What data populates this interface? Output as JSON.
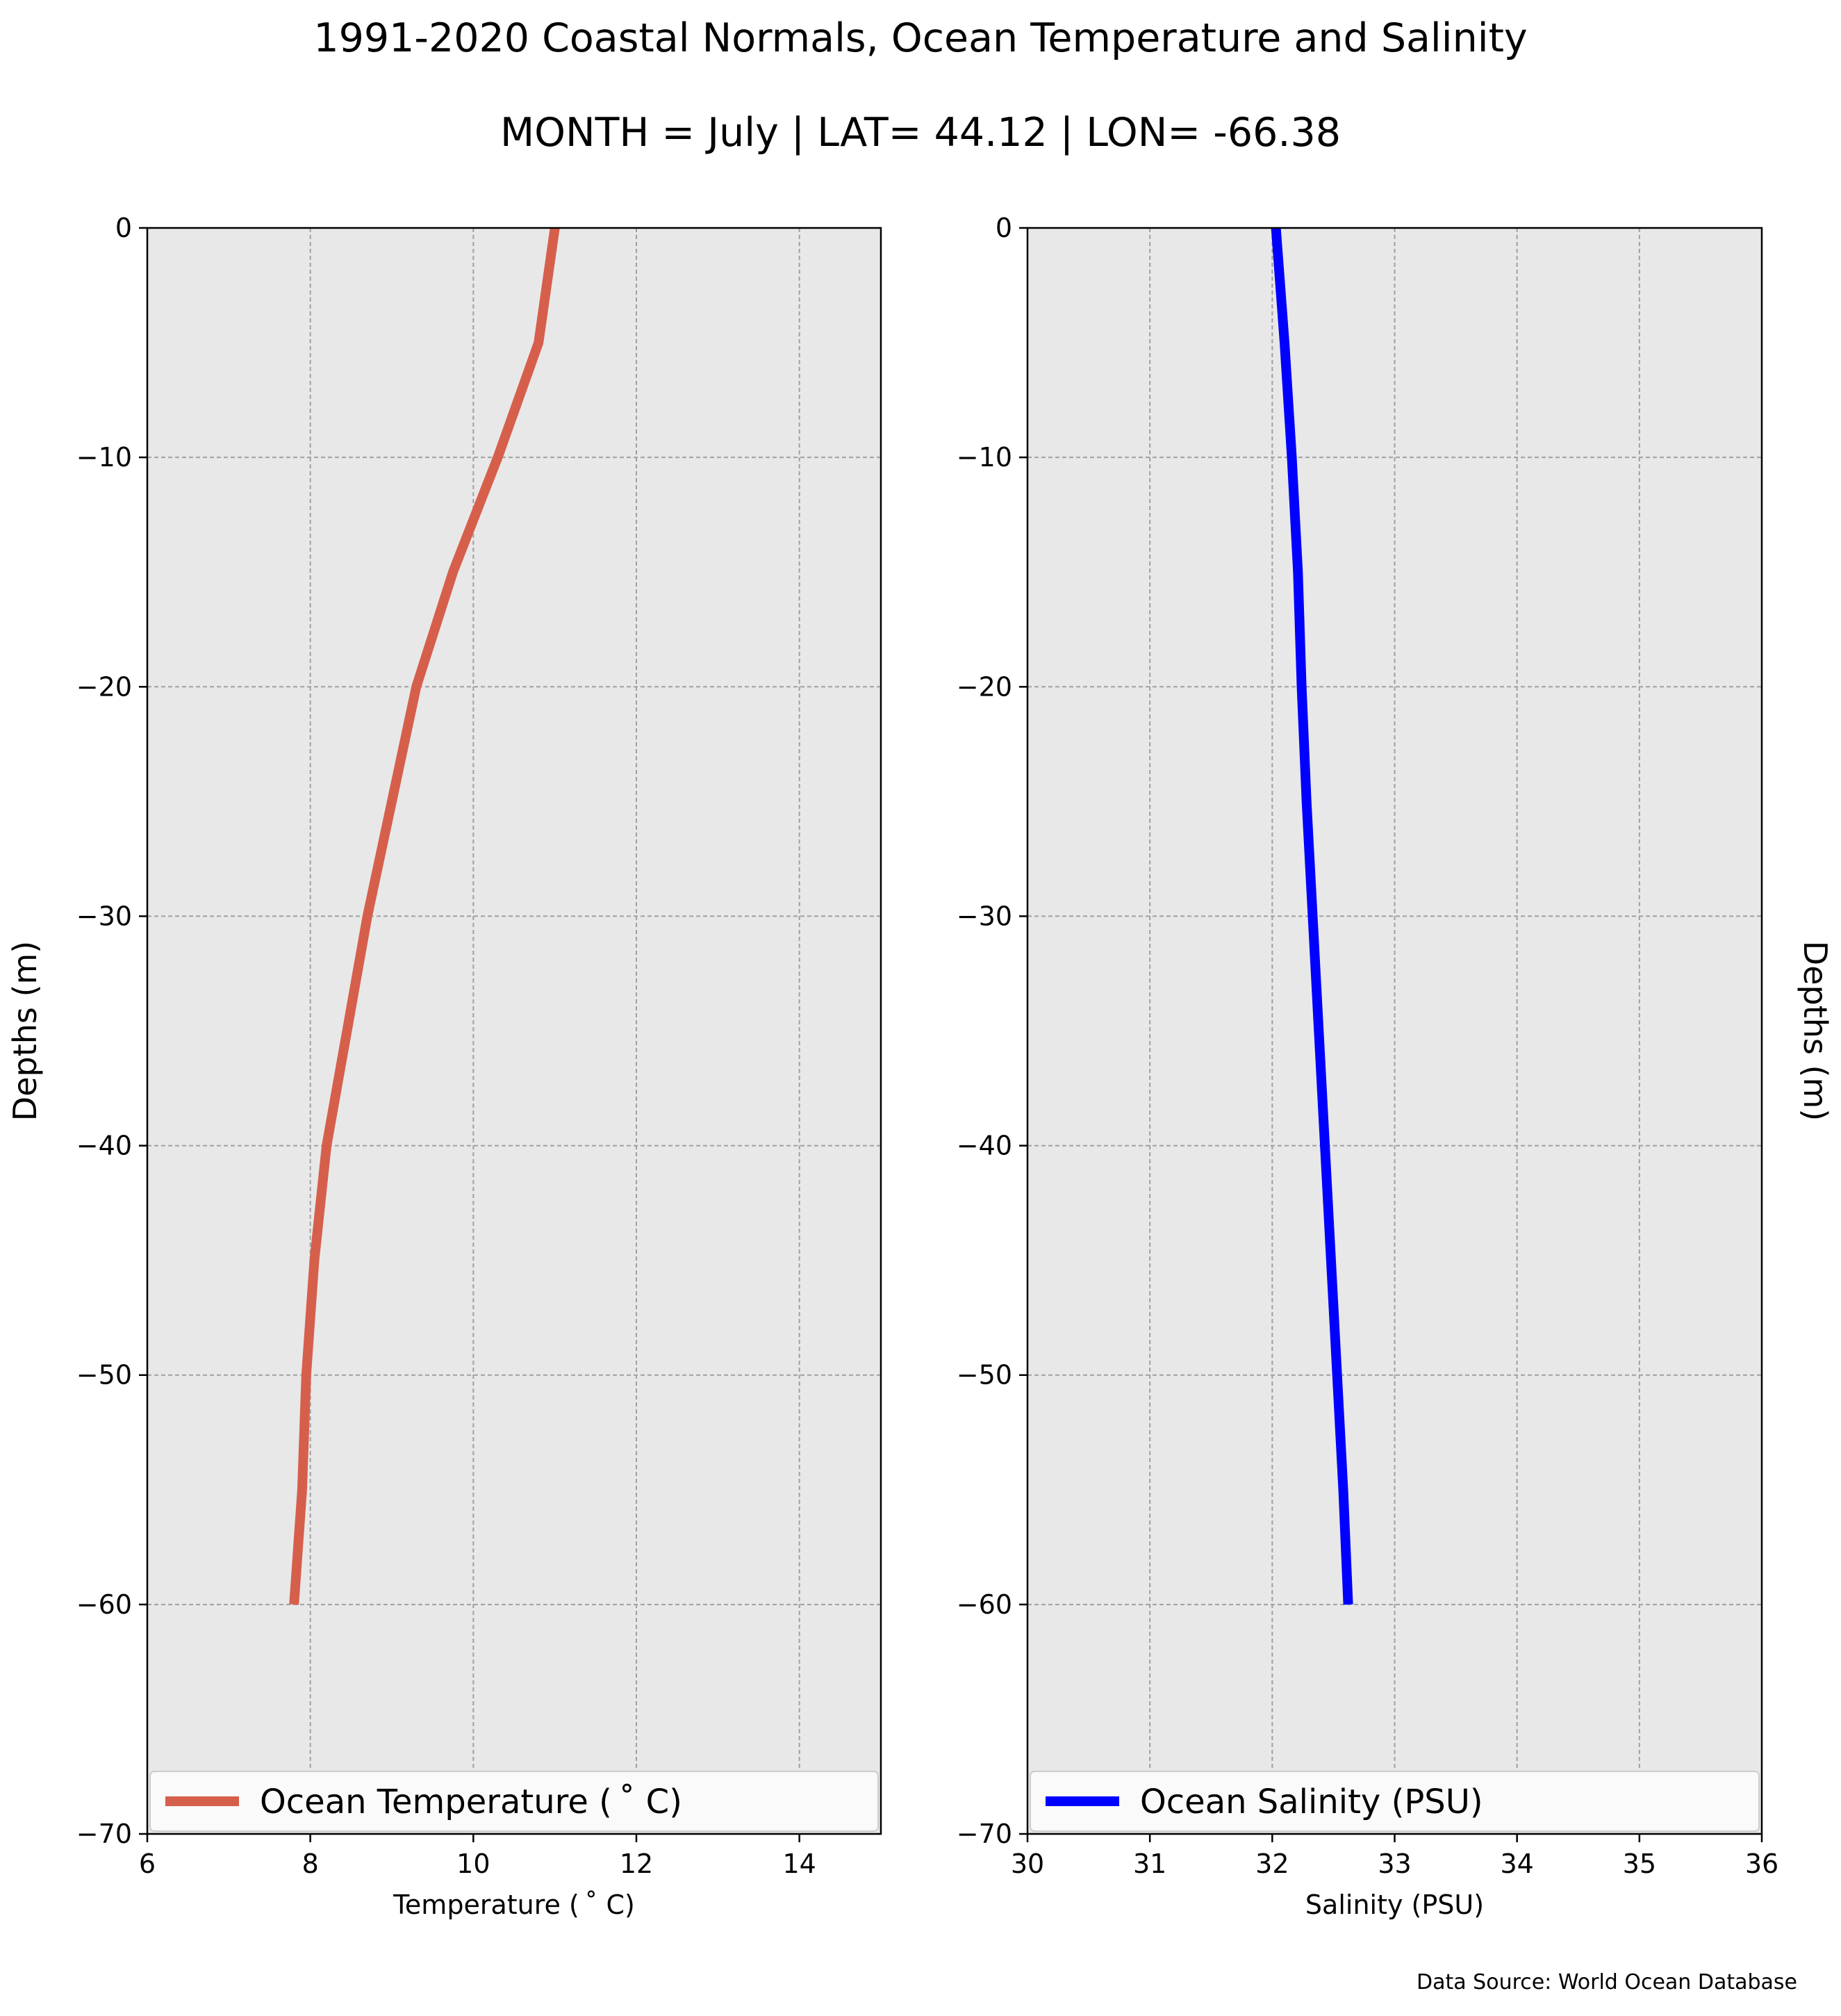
{
  "figure": {
    "title_line1": "1991-2020 Coastal Normals, Ocean Temperature and Salinity",
    "title_line2": "MONTH = July | LAT= 44.12 | LON= -66.38",
    "source": "Data Source: World Ocean Database"
  },
  "colors": {
    "temperature": "#d65f4c",
    "salinity": "#0000ff",
    "axes_background": "#e8e8e8",
    "grid": "#a0a0a0"
  },
  "chart_data": [
    {
      "type": "line",
      "xlabel": "Temperature ($^\\circ$C)",
      "xlabel_display": "Temperature ( ˚ C)",
      "ylabel": "Depths (m)",
      "xlim": [
        6,
        15
      ],
      "ylim": [
        -70,
        0
      ],
      "xticks": [
        6,
        8,
        10,
        12,
        14
      ],
      "yticks": [
        0,
        -10,
        -20,
        -30,
        -40,
        -50,
        -60,
        -70
      ],
      "ytick_labels": [
        "0",
        "−10",
        "−20",
        "−30",
        "−40",
        "−50",
        "−60",
        "−70"
      ],
      "grid": true,
      "legend_position": "lower-center",
      "series": [
        {
          "name": "Ocean Temperature ( ˚ C)",
          "x": [
            11.0,
            10.8,
            10.3,
            9.75,
            9.3,
            9.0,
            8.7,
            8.45,
            8.2,
            8.05,
            7.95,
            7.9,
            7.8
          ],
          "y": [
            0,
            -5,
            -10,
            -15,
            -20,
            -25,
            -30,
            -35,
            -40,
            -45,
            -50,
            -55,
            -60
          ]
        }
      ]
    },
    {
      "type": "line",
      "xlabel": "Salinity (PSU)",
      "ylabel": "Depths (m)",
      "xlim": [
        30,
        36
      ],
      "ylim": [
        -70,
        0
      ],
      "xticks": [
        30,
        31,
        32,
        33,
        34,
        35,
        36
      ],
      "yticks": [
        0,
        -10,
        -20,
        -30,
        -40,
        -50,
        -60,
        -70
      ],
      "ytick_labels": [
        "0",
        "−10",
        "−20",
        "−30",
        "−40",
        "−50",
        "−60",
        "−70"
      ],
      "grid": true,
      "legend_position": "lower-center",
      "series": [
        {
          "name": "Ocean Salinity (PSU)",
          "x": [
            32.03,
            32.1,
            32.16,
            32.21,
            32.24,
            32.28,
            32.33,
            32.38,
            32.43,
            32.48,
            32.53,
            32.58,
            32.62
          ],
          "y": [
            0,
            -5,
            -10,
            -15,
            -20,
            -25,
            -30,
            -35,
            -40,
            -45,
            -50,
            -55,
            -60
          ]
        }
      ]
    }
  ]
}
